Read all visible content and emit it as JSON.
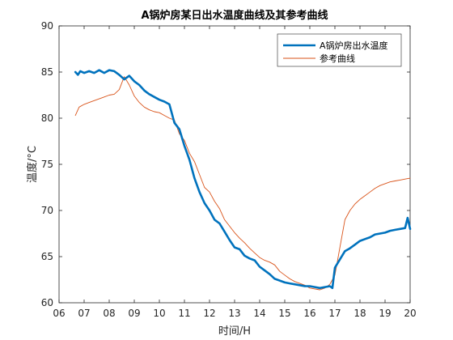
{
  "chart_data": {
    "type": "line",
    "title": "A锅炉房某日出水温度曲线及其参考曲线",
    "xlabel": "时间/H",
    "ylabel": "温度/°C",
    "xlim": [
      6,
      20
    ],
    "ylim": [
      60,
      90
    ],
    "x_ticks": [
      6,
      7,
      8,
      9,
      10,
      11,
      12,
      13,
      14,
      15,
      16,
      17,
      18,
      19,
      20
    ],
    "x_tick_labels": [
      "06",
      "07",
      "08",
      "09",
      "10",
      "11",
      "12",
      "13",
      "14",
      "15",
      "16",
      "17",
      "18",
      "19",
      "20"
    ],
    "y_ticks": [
      60,
      65,
      70,
      75,
      80,
      85,
      90
    ],
    "y_tick_labels": [
      "60",
      "65",
      "70",
      "75",
      "80",
      "85",
      "90"
    ],
    "grid": false,
    "legend_position": "top-right",
    "series": [
      {
        "name": "A锅炉房出水温度",
        "color": "#0072BD",
        "line_width": "thick",
        "x": [
          6.65,
          6.75,
          6.85,
          7.0,
          7.2,
          7.4,
          7.6,
          7.8,
          8.0,
          8.2,
          8.4,
          8.6,
          8.8,
          9.0,
          9.2,
          9.4,
          9.6,
          9.8,
          10.0,
          10.2,
          10.4,
          10.6,
          10.8,
          11.0,
          11.2,
          11.4,
          11.6,
          11.8,
          12.0,
          12.2,
          12.4,
          12.6,
          12.8,
          13.0,
          13.2,
          13.4,
          13.6,
          13.8,
          14.0,
          14.2,
          14.4,
          14.6,
          14.8,
          15.0,
          15.2,
          15.4,
          15.6,
          15.8,
          16.0,
          16.2,
          16.4,
          16.6,
          16.8,
          16.9,
          17.0,
          17.2,
          17.4,
          17.6,
          17.8,
          18.0,
          18.2,
          18.4,
          18.6,
          18.8,
          19.0,
          19.2,
          19.4,
          19.6,
          19.8,
          19.9,
          20.0
        ],
        "values": [
          85.0,
          84.7,
          85.1,
          84.9,
          85.1,
          84.9,
          85.2,
          84.9,
          85.2,
          85.1,
          84.7,
          84.2,
          84.6,
          84.0,
          83.6,
          83.0,
          82.6,
          82.3,
          82.0,
          81.8,
          81.5,
          79.5,
          78.8,
          77.0,
          75.5,
          73.5,
          72.0,
          70.8,
          70.0,
          69.0,
          68.6,
          67.7,
          66.8,
          66.0,
          65.8,
          65.1,
          64.8,
          64.6,
          63.9,
          63.5,
          63.1,
          62.6,
          62.4,
          62.2,
          62.1,
          62.0,
          61.9,
          61.8,
          61.8,
          61.7,
          61.6,
          61.7,
          61.8,
          61.6,
          63.8,
          64.7,
          65.6,
          65.9,
          66.3,
          66.7,
          66.9,
          67.1,
          67.4,
          67.5,
          67.6,
          67.8,
          67.9,
          68.0,
          68.1,
          69.2,
          68.0
        ]
      },
      {
        "name": "参考曲线",
        "color": "#D95319",
        "line_width": "thin",
        "x": [
          6.65,
          6.8,
          7.0,
          7.2,
          7.4,
          7.6,
          7.8,
          8.0,
          8.2,
          8.4,
          8.6,
          8.8,
          9.0,
          9.2,
          9.4,
          9.6,
          9.8,
          10.0,
          10.2,
          10.4,
          10.6,
          10.8,
          11.0,
          11.2,
          11.4,
          11.6,
          11.8,
          12.0,
          12.2,
          12.4,
          12.6,
          12.8,
          13.0,
          13.2,
          13.4,
          13.6,
          13.8,
          14.0,
          14.2,
          14.4,
          14.6,
          14.8,
          15.0,
          15.2,
          15.4,
          15.6,
          15.8,
          16.0,
          16.2,
          16.4,
          16.6,
          16.8,
          17.0,
          17.2,
          17.4,
          17.6,
          17.8,
          18.0,
          18.2,
          18.4,
          18.6,
          18.8,
          19.0,
          19.2,
          19.4,
          19.6,
          19.8,
          20.0
        ],
        "values": [
          80.3,
          81.2,
          81.5,
          81.7,
          81.9,
          82.1,
          82.3,
          82.5,
          82.6,
          83.1,
          84.5,
          83.6,
          82.4,
          81.7,
          81.2,
          80.9,
          80.7,
          80.6,
          80.3,
          80.0,
          79.8,
          78.3,
          77.6,
          76.2,
          75.3,
          73.9,
          72.5,
          72.0,
          71.0,
          70.2,
          69.0,
          68.3,
          67.6,
          67.0,
          66.5,
          65.9,
          65.4,
          64.9,
          64.6,
          64.4,
          64.1,
          63.4,
          63.0,
          62.6,
          62.3,
          62.1,
          61.9,
          61.6,
          61.5,
          61.4,
          61.6,
          62.0,
          63.0,
          66.0,
          69.0,
          70.0,
          70.7,
          71.2,
          71.6,
          72.0,
          72.4,
          72.7,
          72.9,
          73.1,
          73.2,
          73.3,
          73.4,
          73.5
        ]
      }
    ]
  }
}
